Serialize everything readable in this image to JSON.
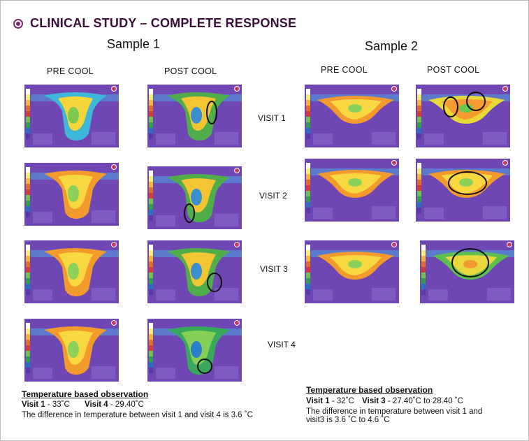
{
  "slide": {
    "title": "CLINICAL STUDY – COMPLETE RESPONSE",
    "colors": {
      "title": "#3b0f3a",
      "bullet": "#7a2a6b",
      "thermal_bg": "#6f47b4",
      "circle": "#111111"
    }
  },
  "sample1": {
    "heading": "Sample 1",
    "col_pre": "PRE COOL",
    "col_post": "POST COOL",
    "observation": {
      "title": "Temperature based observation",
      "v1_label": "Visit 1",
      "v1_value": "-  33˚C",
      "v2_label": "Visit 4",
      "v2_value": "-  29.40˚C",
      "summary": "The difference in temperature between  visit 1 and visit 4 is 3.6 ˚C"
    }
  },
  "sample2": {
    "heading": "Sample 2",
    "col_pre": "PRE COOL",
    "col_post": "POST COOL",
    "observation": {
      "title": "Temperature based observation",
      "v1_label": "Visit 1",
      "v1_value": "-  32˚C",
      "v2_label": "Visit 3",
      "v2_value": "-  27.40˚C  to 28.40 ˚C",
      "summary_line1": "The difference in temperature between  visit 1 and",
      "summary_line2": "visit3 is 3.6 ˚C to 4.6 ˚C"
    }
  },
  "visits": [
    "VISIT 1",
    "VISIT 2",
    "VISIT 3",
    "VISIT 4"
  ]
}
